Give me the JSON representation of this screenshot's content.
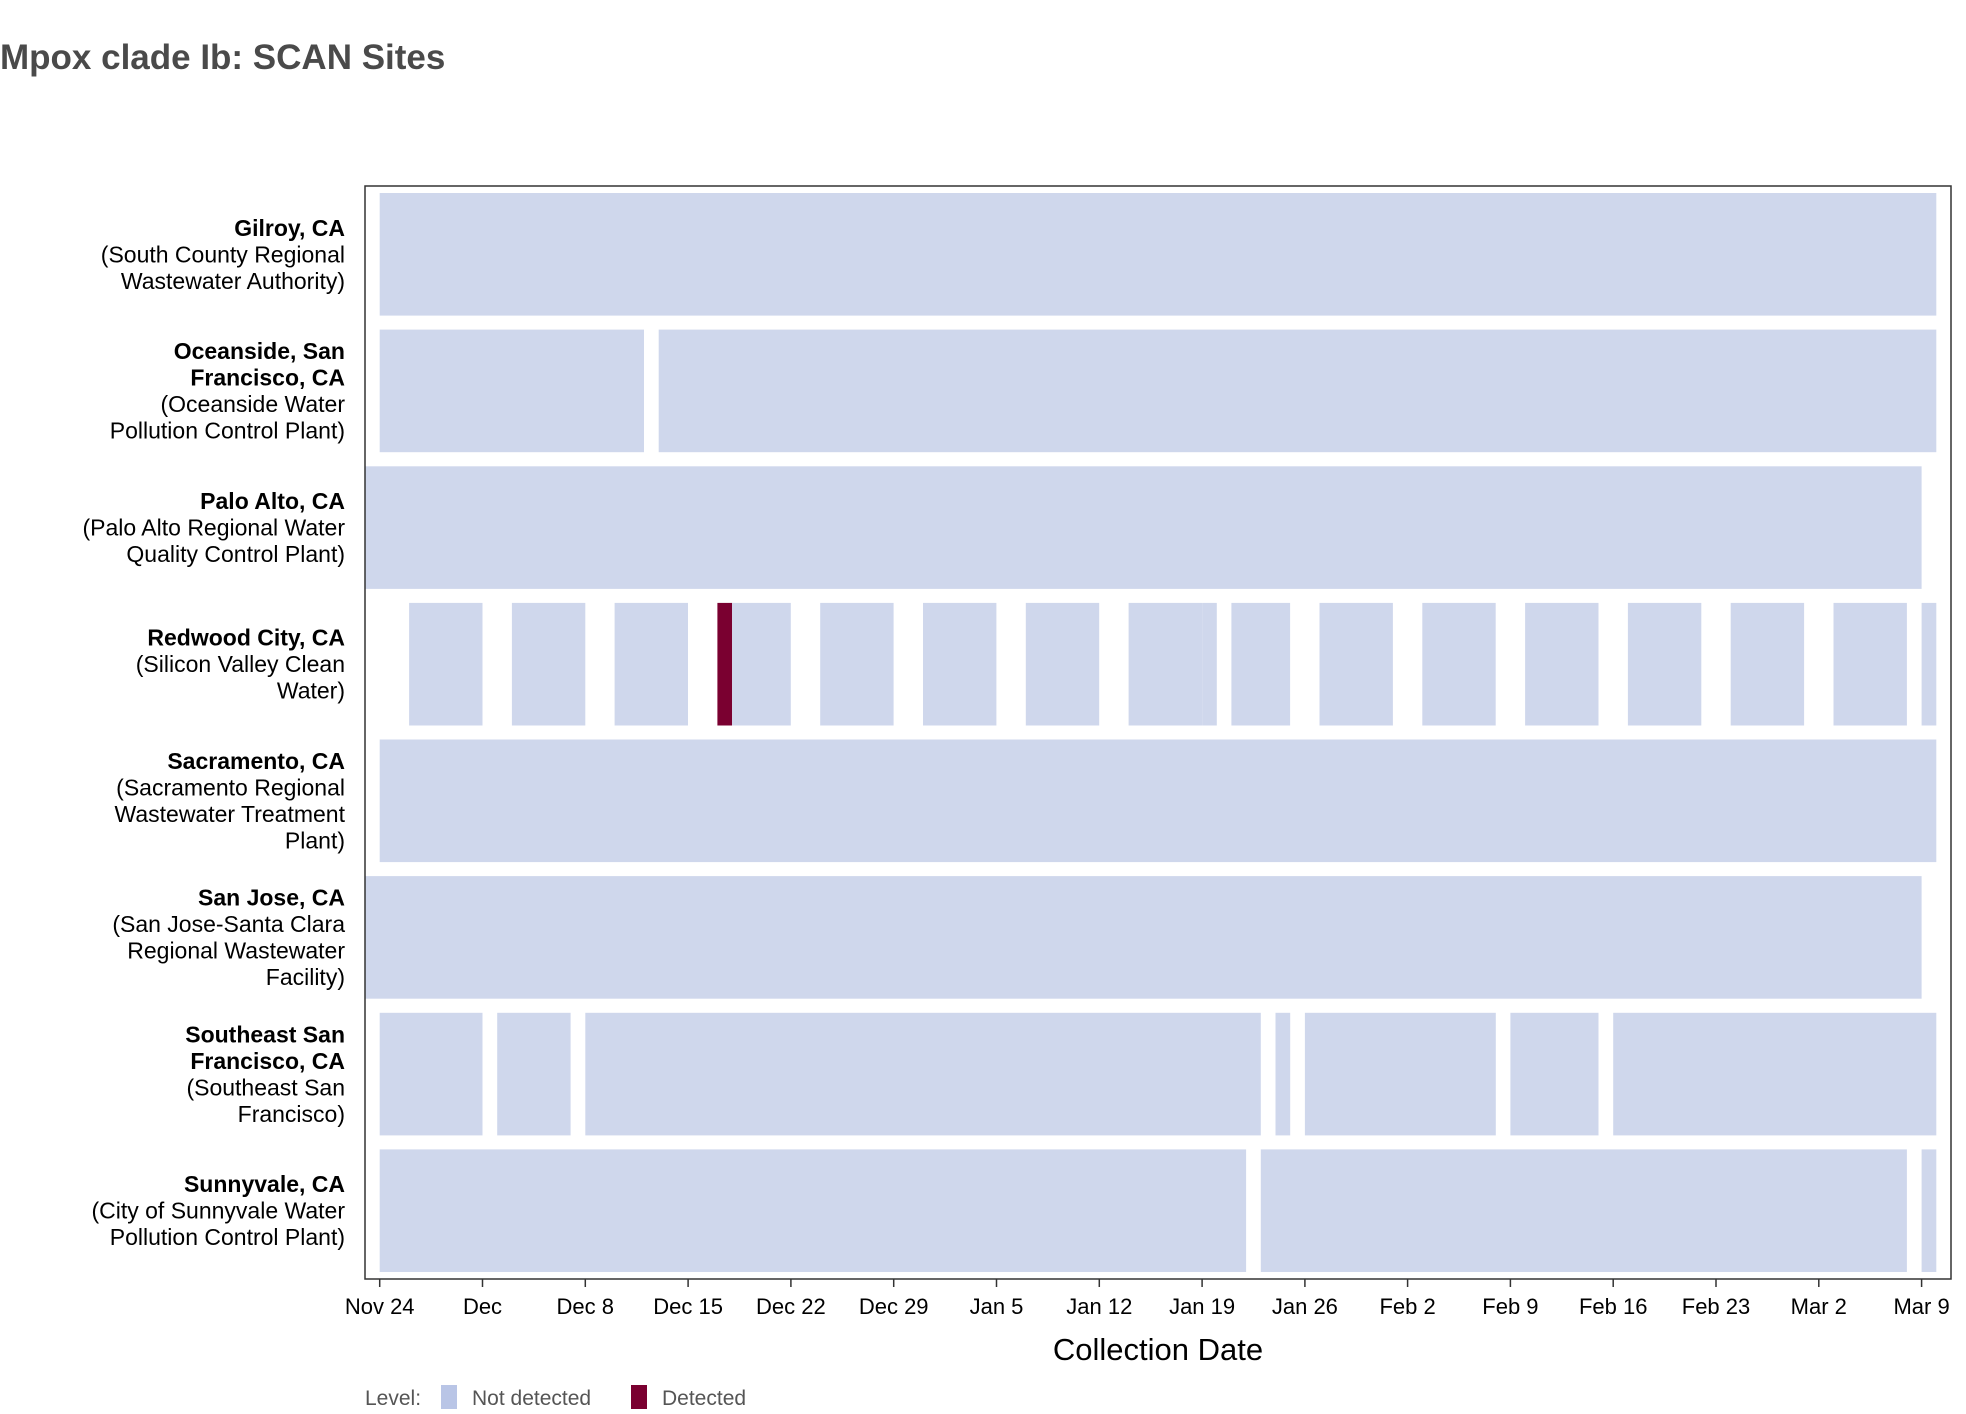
{
  "chart_data": {
    "type": "heatmap",
    "title": "Mpox clade Ib: SCAN Sites",
    "xlabel": "Collection Date",
    "ylabel": "",
    "x_ticks": [
      {
        "label": "Nov 24",
        "date": "2024-11-24"
      },
      {
        "label": "Dec",
        "date": "2024-12-01"
      },
      {
        "label": "Dec 8",
        "date": "2024-12-08"
      },
      {
        "label": "Dec 15",
        "date": "2024-12-15"
      },
      {
        "label": "Dec 22",
        "date": "2024-12-22"
      },
      {
        "label": "Dec 29",
        "date": "2024-12-29"
      },
      {
        "label": "Jan 5",
        "date": "2025-01-05"
      },
      {
        "label": "Jan 12",
        "date": "2025-01-12"
      },
      {
        "label": "Jan 19",
        "date": "2025-01-19"
      },
      {
        "label": "Jan 26",
        "date": "2025-01-26"
      },
      {
        "label": "Feb 2",
        "date": "2025-02-02"
      },
      {
        "label": "Feb 9",
        "date": "2025-02-09"
      },
      {
        "label": "Feb 16",
        "date": "2025-02-16"
      },
      {
        "label": "Feb 23",
        "date": "2025-02-23"
      },
      {
        "label": "Mar 2",
        "date": "2025-03-02"
      },
      {
        "label": "Mar 9",
        "date": "2025-03-09"
      }
    ],
    "x_range": [
      "2024-11-23",
      "2025-03-11"
    ],
    "legend": {
      "title": "Level:",
      "placement": "bottom-left",
      "items": [
        {
          "label": "Not detected",
          "color": "#cfd7ec"
        },
        {
          "label": "Detected",
          "color": "#7a0030"
        }
      ]
    },
    "colors": {
      "not_detected": "#cfd7ec",
      "detected": "#7a0030",
      "legend_not_detected": "#b9c5e6"
    },
    "rows": [
      {
        "site": "Gilroy, CA",
        "facility_lines": [
          "(South County Regional",
          "Wastewater Authority)"
        ],
        "site_lines": [
          "Gilroy, CA"
        ],
        "segments": [
          {
            "start": "2024-11-24",
            "end": "2025-03-10",
            "level": "Not detected"
          }
        ]
      },
      {
        "site": "Oceanside, San Francisco, CA",
        "site_lines": [
          "Oceanside, San",
          "Francisco, CA"
        ],
        "facility_lines": [
          "(Oceanside Water",
          "Pollution Control Plant)"
        ],
        "segments": [
          {
            "start": "2024-11-24",
            "end": "2024-12-12",
            "level": "Not detected"
          },
          {
            "start": "2024-12-13",
            "end": "2025-03-10",
            "level": "Not detected"
          }
        ]
      },
      {
        "site": "Palo Alto, CA",
        "site_lines": [
          "Palo Alto, CA"
        ],
        "facility_lines": [
          "(Palo Alto Regional Water",
          "Quality Control Plant)"
        ],
        "segments": [
          {
            "start": "2024-11-23",
            "end": "2025-03-09",
            "level": "Not detected"
          }
        ]
      },
      {
        "site": "Redwood City, CA",
        "site_lines": [
          "Redwood City, CA"
        ],
        "facility_lines": [
          "(Silicon Valley Clean",
          "Water)"
        ],
        "segments": [
          {
            "start": "2024-11-26",
            "end": "2024-12-01",
            "level": "Not detected"
          },
          {
            "start": "2024-12-03",
            "end": "2024-12-08",
            "level": "Not detected"
          },
          {
            "start": "2024-12-10",
            "end": "2024-12-15",
            "level": "Not detected"
          },
          {
            "start": "2024-12-17",
            "end": "2024-12-18",
            "level": "Detected"
          },
          {
            "start": "2024-12-18",
            "end": "2024-12-22",
            "level": "Not detected"
          },
          {
            "start": "2024-12-24",
            "end": "2024-12-29",
            "level": "Not detected"
          },
          {
            "start": "2024-12-31",
            "end": "2025-01-05",
            "level": "Not detected"
          },
          {
            "start": "2025-01-07",
            "end": "2025-01-12",
            "level": "Not detected"
          },
          {
            "start": "2025-01-14",
            "end": "2025-01-19",
            "level": "Not detected"
          },
          {
            "start": "2025-01-19",
            "end": "2025-01-20",
            "level": "Not detected"
          },
          {
            "start": "2025-01-21",
            "end": "2025-01-25",
            "level": "Not detected"
          },
          {
            "start": "2025-01-27",
            "end": "2025-02-01",
            "level": "Not detected"
          },
          {
            "start": "2025-02-03",
            "end": "2025-02-08",
            "level": "Not detected"
          },
          {
            "start": "2025-02-10",
            "end": "2025-02-15",
            "level": "Not detected"
          },
          {
            "start": "2025-02-17",
            "end": "2025-02-22",
            "level": "Not detected"
          },
          {
            "start": "2025-02-24",
            "end": "2025-03-01",
            "level": "Not detected"
          },
          {
            "start": "2025-03-03",
            "end": "2025-03-08",
            "level": "Not detected"
          },
          {
            "start": "2025-03-09",
            "end": "2025-03-10",
            "level": "Not detected"
          }
        ]
      },
      {
        "site": "Sacramento, CA",
        "site_lines": [
          "Sacramento, CA"
        ],
        "facility_lines": [
          "(Sacramento Regional",
          "Wastewater Treatment",
          "Plant)"
        ],
        "segments": [
          {
            "start": "2024-11-24",
            "end": "2025-03-10",
            "level": "Not detected"
          }
        ]
      },
      {
        "site": "San Jose, CA",
        "site_lines": [
          "San Jose, CA"
        ],
        "facility_lines": [
          "(San Jose-Santa Clara",
          "Regional Wastewater",
          "Facility)"
        ],
        "segments": [
          {
            "start": "2024-11-23",
            "end": "2025-03-09",
            "level": "Not detected"
          }
        ]
      },
      {
        "site": "Southeast San Francisco, CA",
        "site_lines": [
          "Southeast San",
          "Francisco, CA"
        ],
        "facility_lines": [
          "(Southeast San",
          "Francisco)"
        ],
        "segments": [
          {
            "start": "2024-11-24",
            "end": "2024-12-01",
            "level": "Not detected"
          },
          {
            "start": "2024-12-02",
            "end": "2024-12-07",
            "level": "Not detected"
          },
          {
            "start": "2024-12-08",
            "end": "2025-01-23",
            "level": "Not detected"
          },
          {
            "start": "2025-01-24",
            "end": "2025-01-25",
            "level": "Not detected"
          },
          {
            "start": "2025-01-26",
            "end": "2025-02-08",
            "level": "Not detected"
          },
          {
            "start": "2025-02-09",
            "end": "2025-02-15",
            "level": "Not detected"
          },
          {
            "start": "2025-02-16",
            "end": "2025-03-10",
            "level": "Not detected"
          }
        ]
      },
      {
        "site": "Sunnyvale, CA",
        "site_lines": [
          "Sunnyvale, CA"
        ],
        "facility_lines": [
          "(City of Sunnyvale Water",
          "Pollution Control Plant)"
        ],
        "segments": [
          {
            "start": "2024-11-24",
            "end": "2025-01-22",
            "level": "Not detected"
          },
          {
            "start": "2025-01-23",
            "end": "2025-03-08",
            "level": "Not detected"
          },
          {
            "start": "2025-03-09",
            "end": "2025-03-10",
            "level": "Not detected"
          }
        ]
      }
    ]
  }
}
